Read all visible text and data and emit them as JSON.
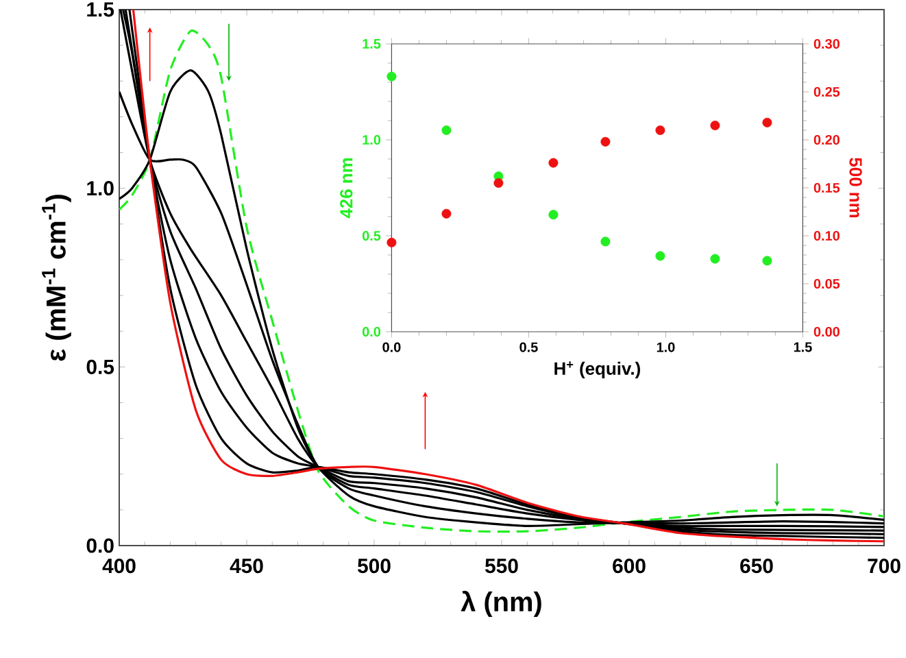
{
  "chart_data": [
    {
      "type": "line",
      "xlabel": "λ (nm)",
      "ylabel": "ε (mM$^{-1}$ cm$^{-1}$)",
      "xlim": [
        400,
        700
      ],
      "ylim": [
        0,
        1.5
      ],
      "xticks": [
        400,
        450,
        500,
        550,
        600,
        650,
        700
      ],
      "yticks": [
        {
          "value": 0,
          "label": "0.0"
        },
        {
          "value": 0.5,
          "label": "0.5"
        },
        {
          "value": 1,
          "label": "1.0"
        },
        {
          "value": 1.5,
          "label": "1.5"
        }
      ],
      "grid": false,
      "marker": "none",
      "series": [
        {
          "color": "#22ee22",
          "line_style": "dashed",
          "x": [
            400,
            405,
            412,
            420,
            428,
            435,
            440,
            450,
            460,
            470,
            478,
            490,
            500,
            520,
            540,
            560,
            580,
            598,
            620,
            640,
            660,
            680,
            700
          ],
          "values": [
            0.94,
            0.98,
            1.08,
            1.33,
            1.44,
            1.4,
            1.31,
            0.89,
            0.63,
            0.38,
            0.21,
            0.11,
            0.07,
            0.05,
            0.04,
            0.04,
            0.05,
            0.065,
            0.08,
            0.095,
            0.1,
            0.1,
            0.082
          ]
        },
        {
          "color": "#000000",
          "line_style": "solid",
          "x": [
            400,
            405,
            412,
            420,
            428,
            435,
            440,
            450,
            460,
            470,
            478,
            490,
            500,
            520,
            540,
            560,
            580,
            598,
            620,
            640,
            660,
            680,
            700
          ],
          "values": [
            0.97,
            1.0,
            1.08,
            1.27,
            1.33,
            1.27,
            1.15,
            0.83,
            0.55,
            0.33,
            0.22,
            0.14,
            0.11,
            0.08,
            0.065,
            0.055,
            0.06,
            0.065,
            0.07,
            0.08,
            0.085,
            0.085,
            0.072
          ]
        },
        {
          "color": "#000000",
          "line_style": "solid",
          "x": [
            400,
            405,
            412,
            420,
            425,
            430,
            440,
            450,
            460,
            470,
            478,
            490,
            500,
            520,
            540,
            560,
            580,
            598,
            620,
            640,
            660,
            680,
            700
          ],
          "values": [
            1.27,
            1.18,
            1.08,
            1.08,
            1.08,
            1.06,
            0.93,
            0.73,
            0.52,
            0.34,
            0.22,
            0.16,
            0.14,
            0.11,
            0.09,
            0.075,
            0.065,
            0.063,
            0.062,
            0.065,
            0.068,
            0.066,
            0.062
          ]
        },
        {
          "color": "#000000",
          "line_style": "solid",
          "x": [
            400.5,
            405,
            412,
            420,
            428,
            440,
            450,
            460,
            470,
            478,
            490,
            500,
            520,
            540,
            560,
            580,
            598,
            620,
            640,
            660,
            680,
            700
          ],
          "values": [
            1.5,
            1.33,
            1.08,
            0.93,
            0.83,
            0.7,
            0.57,
            0.44,
            0.3,
            0.22,
            0.17,
            0.16,
            0.14,
            0.115,
            0.09,
            0.072,
            0.062,
            0.055,
            0.055,
            0.055,
            0.054,
            0.052
          ]
        },
        {
          "color": "#000000",
          "line_style": "solid",
          "x": [
            401.5,
            405,
            412,
            420,
            430,
            440,
            450,
            460,
            470,
            478,
            490,
            500,
            520,
            540,
            560,
            580,
            598,
            620,
            640,
            660,
            680,
            700
          ],
          "values": [
            1.5,
            1.38,
            1.08,
            0.88,
            0.72,
            0.55,
            0.42,
            0.32,
            0.25,
            0.22,
            0.18,
            0.175,
            0.16,
            0.135,
            0.1,
            0.075,
            0.062,
            0.05,
            0.045,
            0.044,
            0.043,
            0.042
          ]
        },
        {
          "color": "#000000",
          "line_style": "solid",
          "x": [
            402.5,
            412,
            420,
            430,
            440,
            450,
            460,
            470,
            478,
            490,
            500,
            520,
            540,
            560,
            580,
            598,
            620,
            640,
            660,
            680,
            700
          ],
          "values": [
            1.5,
            1.08,
            0.8,
            0.58,
            0.43,
            0.33,
            0.26,
            0.23,
            0.22,
            0.195,
            0.19,
            0.175,
            0.15,
            0.11,
            0.078,
            0.062,
            0.045,
            0.038,
            0.035,
            0.034,
            0.032
          ]
        },
        {
          "color": "#000000",
          "line_style": "solid",
          "x": [
            404,
            412,
            420,
            430,
            440,
            450,
            460,
            470,
            478,
            490,
            500,
            520,
            540,
            560,
            580,
            598,
            620,
            640,
            660,
            680,
            700
          ],
          "values": [
            1.5,
            1.08,
            0.72,
            0.45,
            0.3,
            0.23,
            0.205,
            0.21,
            0.22,
            0.205,
            0.2,
            0.185,
            0.16,
            0.115,
            0.08,
            0.062,
            0.04,
            0.03,
            0.027,
            0.024,
            0.022
          ]
        },
        {
          "color": "#ee1111",
          "line_style": "solid",
          "x": [
            405.5,
            412,
            420,
            430,
            440,
            450,
            460,
            470,
            478,
            490,
            500,
            520,
            540,
            560,
            580,
            598,
            620,
            640,
            660,
            680,
            700
          ],
          "values": [
            1.5,
            1.08,
            0.68,
            0.38,
            0.24,
            0.2,
            0.195,
            0.205,
            0.215,
            0.22,
            0.22,
            0.2,
            0.17,
            0.12,
            0.082,
            0.062,
            0.035,
            0.025,
            0.018,
            0.014,
            0.012
          ]
        }
      ]
    },
    {
      "type": "scatter",
      "xlabel": "H$^{+}$ (equiv.)",
      "ylabel": "426 nm",
      "y2label": "500 nm",
      "xlim": [
        0,
        1.5
      ],
      "ylim": [
        0,
        1.5
      ],
      "y2lim": [
        0,
        0.3
      ],
      "xticks": [
        {
          "value": 0,
          "label": "0.0"
        },
        {
          "value": 0.5,
          "label": "0.5"
        },
        {
          "value": 1,
          "label": "1.0"
        },
        {
          "value": 1.5,
          "label": "1.5"
        }
      ],
      "yticks": [
        {
          "value": 0,
          "label": "0.0"
        },
        {
          "value": 0.5,
          "label": "0.5"
        },
        {
          "value": 1,
          "label": "1.0"
        },
        {
          "value": 1.5,
          "label": "1.5"
        }
      ],
      "y2ticks": [
        {
          "value": 0,
          "label": "0.00"
        },
        {
          "value": 0.05,
          "label": "0.05"
        },
        {
          "value": 0.1,
          "label": "0.10"
        },
        {
          "value": 0.15,
          "label": "0.15"
        },
        {
          "value": 0.2,
          "label": "0.20"
        },
        {
          "value": 0.25,
          "label": "0.25"
        },
        {
          "value": 0.3,
          "label": "0.30"
        }
      ],
      "grid": false,
      "marker": "circle",
      "x": [
        0,
        0.2,
        0.39,
        0.59,
        0.78,
        0.98,
        1.18,
        1.37
      ],
      "series": [
        {
          "color": "#22ee22",
          "values": [
            1.33,
            1.05,
            0.81,
            0.61,
            0.47,
            0.395,
            0.38,
            0.37
          ]
        },
        {
          "color": "#ee1111",
          "axis": "y2",
          "values": [
            0.093,
            0.123,
            0.155,
            0.176,
            0.198,
            0.21,
            0.215,
            0.218
          ]
        }
      ]
    }
  ]
}
